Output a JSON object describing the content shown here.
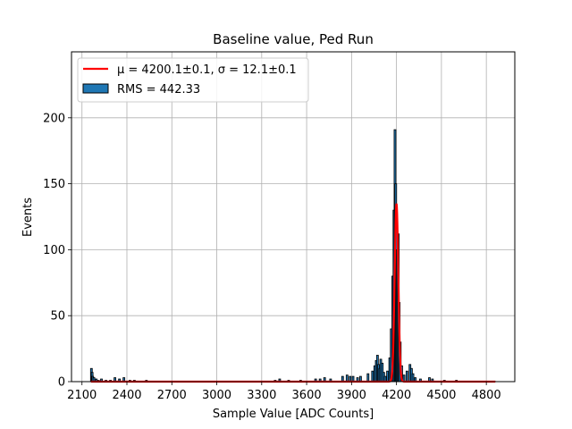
{
  "chart_data": {
    "type": "histogram",
    "title": "Baseline value, Ped Run",
    "xlabel": "Sample Value [ADC Counts]",
    "ylabel": "Events",
    "xlim": [
      2030,
      4990
    ],
    "ylim": [
      0,
      250
    ],
    "xticks": [
      2100,
      2400,
      2700,
      3000,
      3300,
      3600,
      3900,
      4200,
      4500,
      4800
    ],
    "yticks": [
      0,
      50,
      100,
      150,
      200
    ],
    "grid": true,
    "legend_position": "top-left",
    "legend": [
      {
        "label": "μ = 4200.1±0.1, σ = 12.1±0.1",
        "kind": "line",
        "color": "#ff0000"
      },
      {
        "label": "RMS = 442.33",
        "kind": "bar",
        "color": "#1f77b4"
      }
    ],
    "histogram": {
      "range": [
        2160,
        4860
      ],
      "color": "#1f77b4",
      "edgecolor": "#000000",
      "spikes": [
        {
          "x": 2163,
          "y": 10
        },
        {
          "x": 2168,
          "y": 7
        },
        {
          "x": 2172,
          "y": 4
        },
        {
          "x": 2180,
          "y": 3
        },
        {
          "x": 2195,
          "y": 2
        },
        {
          "x": 2210,
          "y": 1
        },
        {
          "x": 2230,
          "y": 2
        },
        {
          "x": 2260,
          "y": 1
        },
        {
          "x": 2290,
          "y": 1
        },
        {
          "x": 2320,
          "y": 3
        },
        {
          "x": 2350,
          "y": 2
        },
        {
          "x": 2380,
          "y": 3
        },
        {
          "x": 2420,
          "y": 1
        },
        {
          "x": 2450,
          "y": 1
        },
        {
          "x": 2530,
          "y": 1
        },
        {
          "x": 3390,
          "y": 1
        },
        {
          "x": 3420,
          "y": 2
        },
        {
          "x": 3480,
          "y": 1
        },
        {
          "x": 3560,
          "y": 1
        },
        {
          "x": 3660,
          "y": 2
        },
        {
          "x": 3690,
          "y": 2
        },
        {
          "x": 3720,
          "y": 3
        },
        {
          "x": 3760,
          "y": 2
        },
        {
          "x": 3840,
          "y": 4
        },
        {
          "x": 3870,
          "y": 5
        },
        {
          "x": 3890,
          "y": 4
        },
        {
          "x": 3910,
          "y": 4
        },
        {
          "x": 3940,
          "y": 3
        },
        {
          "x": 3960,
          "y": 4
        },
        {
          "x": 4010,
          "y": 6
        },
        {
          "x": 4040,
          "y": 8
        },
        {
          "x": 4055,
          "y": 12
        },
        {
          "x": 4065,
          "y": 16
        },
        {
          "x": 4073,
          "y": 20
        },
        {
          "x": 4080,
          "y": 13
        },
        {
          "x": 4088,
          "y": 10
        },
        {
          "x": 4095,
          "y": 17
        },
        {
          "x": 4105,
          "y": 14
        },
        {
          "x": 4115,
          "y": 7
        },
        {
          "x": 4125,
          "y": 4
        },
        {
          "x": 4140,
          "y": 8
        },
        {
          "x": 4155,
          "y": 18
        },
        {
          "x": 4165,
          "y": 40
        },
        {
          "x": 4175,
          "y": 80
        },
        {
          "x": 4183,
          "y": 130
        },
        {
          "x": 4190,
          "y": 191
        },
        {
          "x": 4195,
          "y": 150
        },
        {
          "x": 4200,
          "y": 120
        },
        {
          "x": 4205,
          "y": 100
        },
        {
          "x": 4212,
          "y": 112
        },
        {
          "x": 4218,
          "y": 60
        },
        {
          "x": 4225,
          "y": 30
        },
        {
          "x": 4235,
          "y": 12
        },
        {
          "x": 4250,
          "y": 5
        },
        {
          "x": 4270,
          "y": 8
        },
        {
          "x": 4290,
          "y": 13
        },
        {
          "x": 4300,
          "y": 10
        },
        {
          "x": 4310,
          "y": 6
        },
        {
          "x": 4325,
          "y": 3
        },
        {
          "x": 4360,
          "y": 2
        },
        {
          "x": 4420,
          "y": 3
        },
        {
          "x": 4440,
          "y": 2
        },
        {
          "x": 4520,
          "y": 1
        },
        {
          "x": 4600,
          "y": 1
        }
      ]
    },
    "fit": {
      "type": "gaussian",
      "mu": 4200.1,
      "sigma": 12.1,
      "amplitude": 135,
      "range": [
        2160,
        4860
      ],
      "color": "#ff0000"
    }
  }
}
